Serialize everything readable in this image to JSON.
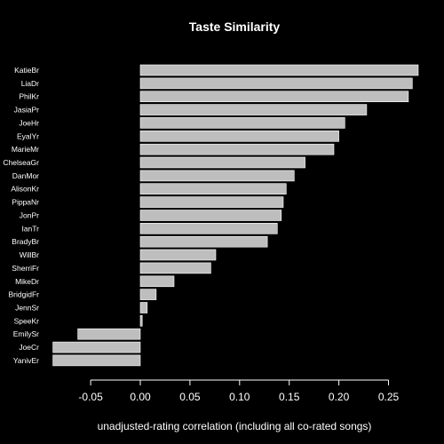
{
  "chart_data": {
    "type": "bar",
    "orientation": "horizontal",
    "title": "Taste Similarity",
    "xlabel": "unadjusted-rating correlation (including all co-rated songs)",
    "ylabel": "",
    "xlim": [
      -0.09,
      0.28
    ],
    "xticks": [
      -0.05,
      0.0,
      0.05,
      0.1,
      0.15,
      0.2,
      0.25
    ],
    "xtick_labels": [
      "-0.05",
      "0.00",
      "0.05",
      "0.10",
      "0.15",
      "0.20",
      "0.25"
    ],
    "grid": false,
    "categories": [
      "KatieBr",
      "LiaDr",
      "PhilKr",
      "JasiaPr",
      "JoeHr",
      "EyalYr",
      "MarieMr",
      "ChelseaGr",
      "DanMor",
      "AlisonKr",
      "PippaNr",
      "JonPr",
      "IanTr",
      "BradyBr",
      "WillBr",
      "SherriFr",
      "MikeDr",
      "BridgidFr",
      "JennSr",
      "SpeeKr",
      "EmilySr",
      "JoeCr",
      "YanivEr"
    ],
    "values": [
      0.28,
      0.274,
      0.27,
      0.228,
      0.206,
      0.2,
      0.195,
      0.166,
      0.155,
      0.147,
      0.144,
      0.142,
      0.138,
      0.128,
      0.076,
      0.071,
      0.034,
      0.016,
      0.007,
      0.002,
      -0.063,
      -0.088,
      -0.088
    ],
    "bar_color": "#bebebe",
    "bar_border": "#ffffff",
    "background": "#000000"
  }
}
